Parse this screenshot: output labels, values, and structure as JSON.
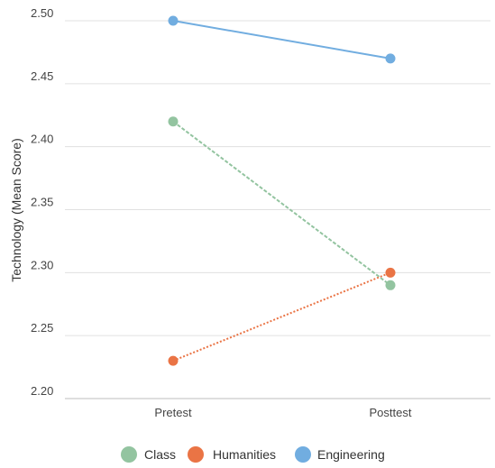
{
  "chart_data": {
    "type": "line",
    "title": "",
    "xlabel": "",
    "ylabel": "Technology (Mean Score)",
    "categories": [
      "Pretest",
      "Posttest"
    ],
    "ylim": [
      2.2,
      2.5
    ],
    "yticks": [
      "2.20",
      "2.25",
      "2.30",
      "2.35",
      "2.40",
      "2.45",
      "2.50"
    ],
    "grid": true,
    "legend_position": "bottom",
    "series": [
      {
        "name": "Class",
        "values": [
          2.42,
          2.29
        ],
        "color": "#93c4a0",
        "line_style": "dashed"
      },
      {
        "name": "Humanities",
        "values": [
          2.23,
          2.3
        ],
        "color": "#ea7445",
        "line_style": "dotted"
      },
      {
        "name": "Engineering",
        "values": [
          2.5,
          2.47
        ],
        "color": "#71ade0",
        "line_style": "solid"
      }
    ]
  }
}
